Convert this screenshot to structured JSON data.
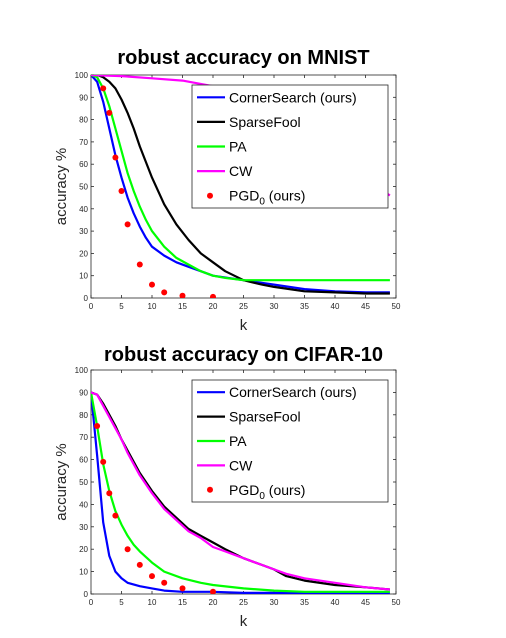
{
  "chart_data": [
    {
      "type": "line",
      "title": "robust accuracy on MNIST",
      "xlabel": "k",
      "ylabel": "accuracy %",
      "xlim": [
        0,
        50
      ],
      "ylim": [
        0,
        100
      ],
      "xticks": [
        0,
        5,
        10,
        15,
        20,
        25,
        30,
        35,
        40,
        45,
        50
      ],
      "yticks": [
        0,
        10,
        20,
        30,
        40,
        50,
        60,
        70,
        80,
        90,
        100
      ],
      "legend_position": "top-right",
      "series": [
        {
          "name": "CornerSearch (ours)",
          "style": "line",
          "color": "#0000ff",
          "x": [
            0,
            1,
            2,
            3,
            4,
            5,
            6,
            7,
            8,
            9,
            10,
            12,
            14,
            16,
            18,
            20,
            25,
            30,
            35,
            40,
            45,
            49
          ],
          "y": [
            100,
            97,
            88,
            76,
            64,
            54,
            45,
            38,
            32,
            27,
            23,
            19,
            16,
            14,
            12,
            10,
            8,
            6,
            4,
            3,
            2.5,
            2.5
          ]
        },
        {
          "name": "SparseFool",
          "style": "line",
          "color": "#000000",
          "x": [
            0,
            1,
            2,
            3,
            4,
            5,
            6,
            7,
            8,
            9,
            10,
            12,
            14,
            16,
            18,
            20,
            22,
            25,
            28,
            30,
            35,
            40,
            45,
            49
          ],
          "y": [
            100,
            100,
            99,
            97,
            94,
            89,
            83,
            76,
            68,
            61,
            54,
            42,
            33,
            26,
            20,
            16,
            12,
            8,
            6,
            5,
            3,
            2.5,
            2,
            2
          ]
        },
        {
          "name": "PA",
          "style": "line",
          "color": "#00ff00",
          "x": [
            0,
            1,
            2,
            3,
            4,
            5,
            6,
            7,
            8,
            9,
            10,
            12,
            14,
            16,
            18,
            20,
            22,
            25,
            30,
            35,
            40,
            45,
            49
          ],
          "y": [
            100,
            99,
            94,
            86,
            76,
            66,
            56,
            48,
            41,
            35,
            30,
            23,
            18,
            15,
            12,
            10,
            9,
            8,
            8,
            8,
            8,
            8,
            8
          ]
        },
        {
          "name": "CW",
          "style": "line",
          "color": "#ff00ff",
          "x": [
            0,
            5,
            10,
            15,
            17,
            20,
            25,
            30,
            35,
            40,
            45,
            49
          ],
          "y": [
            100,
            99.5,
            98.5,
            97.5,
            96.5,
            95,
            90,
            82,
            72,
            62,
            53,
            46
          ]
        },
        {
          "name": "PGD_0 (ours)",
          "style": "markers",
          "color": "#ff0000",
          "x": [
            2,
            3,
            4,
            5,
            6,
            8,
            10,
            12,
            15,
            20
          ],
          "y": [
            94,
            83,
            63,
            48,
            33,
            15,
            6,
            2.5,
            1,
            0.5
          ]
        }
      ]
    },
    {
      "type": "line",
      "title": "robust accuracy on CIFAR-10",
      "xlabel": "k",
      "ylabel": "accuracy %",
      "xlim": [
        0,
        50
      ],
      "ylim": [
        0,
        100
      ],
      "xticks": [
        0,
        5,
        10,
        15,
        20,
        25,
        30,
        35,
        40,
        45,
        50
      ],
      "yticks": [
        0,
        10,
        20,
        30,
        40,
        50,
        60,
        70,
        80,
        90,
        100
      ],
      "legend_position": "top-right",
      "series": [
        {
          "name": "CornerSearch (ours)",
          "style": "line",
          "color": "#0000ff",
          "x": [
            0,
            1,
            2,
            3,
            4,
            5,
            6,
            8,
            10,
            12,
            15,
            20,
            25,
            30,
            40,
            49
          ],
          "y": [
            90,
            62,
            32,
            17,
            10,
            7,
            5,
            3.5,
            2.5,
            1.5,
            1,
            1,
            0.5,
            0.5,
            0.5,
            0.5
          ]
        },
        {
          "name": "SparseFool",
          "style": "line",
          "color": "#000000",
          "x": [
            0,
            1,
            2,
            3,
            4,
            5,
            6,
            8,
            10,
            12,
            14,
            16,
            18,
            20,
            22,
            25,
            28,
            30,
            32,
            35,
            40,
            45,
            49
          ],
          "y": [
            90,
            89,
            85,
            80,
            75,
            69,
            64,
            54,
            46,
            39,
            34,
            29,
            26,
            23,
            20,
            16,
            13,
            11,
            8,
            6,
            4,
            3,
            2
          ]
        },
        {
          "name": "PA",
          "style": "line",
          "color": "#00ff00",
          "x": [
            0,
            1,
            2,
            3,
            4,
            5,
            6,
            7,
            8,
            10,
            12,
            15,
            18,
            20,
            25,
            30,
            35,
            40,
            45,
            49
          ],
          "y": [
            90,
            75,
            58,
            46,
            37,
            31,
            26,
            22,
            19,
            14,
            10,
            7,
            5,
            4,
            2.5,
            1.5,
            1,
            1,
            1,
            1
          ]
        },
        {
          "name": "CW",
          "style": "line",
          "color": "#ff00ff",
          "x": [
            0,
            1,
            2,
            3,
            4,
            5,
            6,
            8,
            10,
            12,
            14,
            16,
            18,
            20,
            22,
            25,
            28,
            30,
            32,
            35,
            40,
            45,
            49
          ],
          "y": [
            90,
            89,
            84,
            79,
            74,
            69,
            63,
            53,
            45,
            38,
            33,
            28,
            25,
            21,
            19,
            16,
            13,
            11,
            9,
            7,
            5,
            3,
            2
          ]
        },
        {
          "name": "PGD_0 (ours)",
          "style": "markers",
          "color": "#ff0000",
          "x": [
            1,
            2,
            3,
            4,
            6,
            8,
            10,
            12,
            15,
            20
          ],
          "y": [
            75,
            59,
            45,
            35,
            20,
            13,
            8,
            5,
            2.5,
            1
          ]
        }
      ]
    }
  ]
}
